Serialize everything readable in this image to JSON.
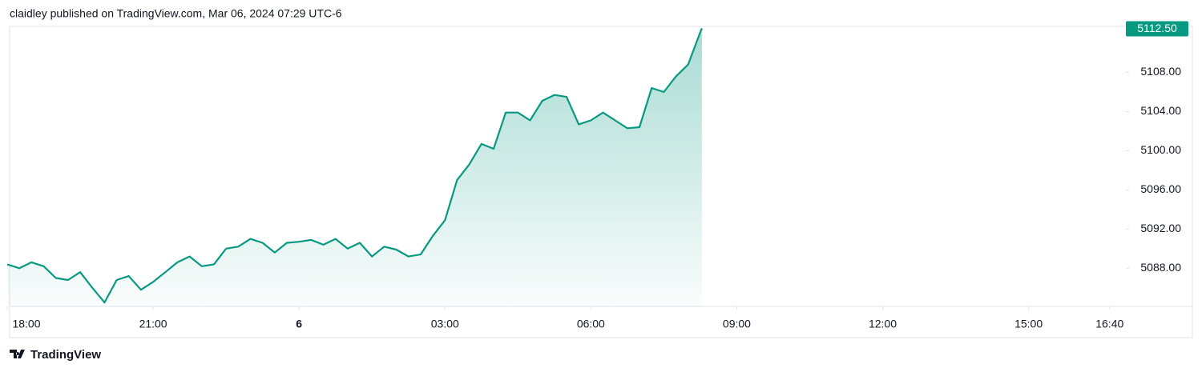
{
  "header": "claidley published on TradingView.com, Mar 06, 2024 07:29 UTC-6",
  "brand": "TradingView",
  "chart_data": {
    "type": "area",
    "color": "#089981",
    "x": [
      "18:00",
      "18:15",
      "18:30",
      "18:45",
      "19:00",
      "19:15",
      "19:30",
      "19:45",
      "20:00",
      "20:15",
      "20:30",
      "20:45",
      "21:00",
      "21:15",
      "21:30",
      "21:45",
      "22:00",
      "22:15",
      "22:30",
      "22:45",
      "23:00",
      "23:15",
      "23:30",
      "23:45",
      "00:00",
      "00:15",
      "00:30",
      "00:45",
      "01:00",
      "01:15",
      "01:30",
      "01:45",
      "02:00",
      "02:15",
      "02:30",
      "02:45",
      "03:00",
      "03:15",
      "03:30",
      "03:45",
      "04:00",
      "04:15",
      "04:30",
      "04:45",
      "05:00",
      "05:15",
      "05:30",
      "05:45",
      "06:00",
      "06:15",
      "06:30",
      "06:45",
      "07:00",
      "07:15",
      "07:30",
      "07:45",
      "08:00",
      "08:15",
      "08:17"
    ],
    "values": [
      5088.4,
      5088.0,
      5088.6,
      5088.2,
      5087.0,
      5086.8,
      5087.6,
      5086.0,
      5084.5,
      5086.8,
      5087.2,
      5085.8,
      5086.6,
      5087.6,
      5088.6,
      5089.2,
      5088.2,
      5088.4,
      5090.0,
      5090.2,
      5091.0,
      5090.6,
      5089.6,
      5090.6,
      5090.7,
      5090.9,
      5090.4,
      5091.0,
      5090.0,
      5090.6,
      5089.2,
      5090.2,
      5089.9,
      5089.2,
      5089.4,
      5091.3,
      5092.9,
      5097.0,
      5098.6,
      5100.7,
      5100.2,
      5103.9,
      5103.9,
      5103.1,
      5105.1,
      5105.7,
      5105.5,
      5102.7,
      5103.1,
      5103.9,
      5103.1,
      5102.3,
      5102.4,
      5106.4,
      5106.0,
      5107.6,
      5108.8,
      5112.1,
      5112.5
    ],
    "last_value_label": "5112.50",
    "xlim": [
      "18:00",
      "17:00"
    ],
    "xticks": [
      "18:00",
      "21:00",
      {
        "value": "00:00",
        "label": "6"
      },
      "03:00",
      "06:00",
      "09:00",
      "12:00",
      "15:00",
      "16:40"
    ],
    "ylim": [
      5084.1,
      5112.7
    ],
    "yticks": [
      {
        "value": 5088,
        "label": "5088.00"
      },
      {
        "value": 5092,
        "label": "5092.00"
      },
      {
        "value": 5096,
        "label": "5096.00"
      },
      {
        "value": 5100,
        "label": "5100.00"
      },
      {
        "value": 5104,
        "label": "5104.00"
      },
      {
        "value": 5108,
        "label": "5108.00"
      }
    ]
  }
}
